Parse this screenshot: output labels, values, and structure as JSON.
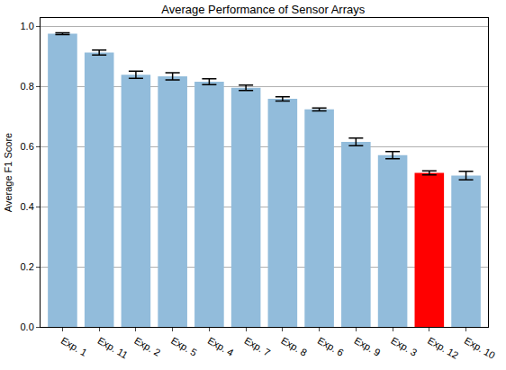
{
  "chart_data": {
    "type": "bar",
    "title": "Average Performance of Sensor Arrays",
    "y_label": "Average F1 Score",
    "categories": [
      "Exp. 1",
      "Exp. 11",
      "Exp. 2",
      "Exp. 5",
      "Exp. 4",
      "Exp. 7",
      "Exp. 8",
      "Exp. 6",
      "Exp. 9",
      "Exp. 3",
      "Exp. 12",
      "Exp. 10"
    ],
    "values": [
      0.975,
      0.912,
      0.838,
      0.833,
      0.815,
      0.795,
      0.758,
      0.723,
      0.615,
      0.571,
      0.512,
      0.503
    ],
    "errors": [
      0.003,
      0.008,
      0.012,
      0.012,
      0.01,
      0.009,
      0.007,
      0.005,
      0.013,
      0.012,
      0.007,
      0.014
    ],
    "colors": [
      "#92bcdb",
      "#92bcdb",
      "#92bcdb",
      "#92bcdb",
      "#92bcdb",
      "#92bcdb",
      "#92bcdb",
      "#92bcdb",
      "#92bcdb",
      "#92bcdb",
      "#ff0000",
      "#92bcdb"
    ],
    "ylim": [
      0,
      1.027
    ],
    "yticks": [
      {
        "value": 0,
        "label": "0.0"
      },
      0.2,
      0.4,
      0.6,
      0.8,
      {
        "value": 1,
        "label": "1.0"
      }
    ],
    "grid": true
  }
}
